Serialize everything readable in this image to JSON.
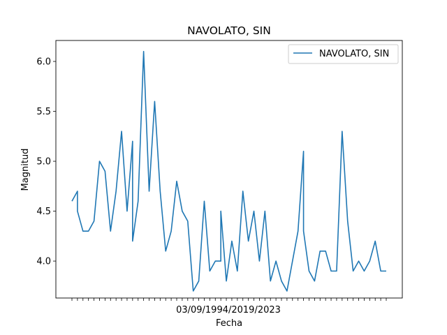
{
  "chart_data": {
    "type": "line",
    "title": "NAVOLATO, SIN",
    "xlabel": "Fecha",
    "ylabel": "Magnitud",
    "ylim": [
      3.63,
      6.21
    ],
    "yticks": [
      4.0,
      4.5,
      5.0,
      5.5,
      6.0
    ],
    "ytick_labels": [
      "4.0",
      "4.5",
      "5.0",
      "5.5",
      "6.0"
    ],
    "x_overlapping_tick_text": "03/09/1994/2019/2023",
    "legend": {
      "position": "top-right",
      "entries": [
        "NAVOLATO, SIN"
      ]
    },
    "grid": false,
    "series": [
      {
        "name": "NAVOLATO, SIN",
        "color": "#1f77b4",
        "x": [
          0,
          1,
          1,
          2,
          3,
          4,
          5,
          6,
          7,
          8,
          9,
          10,
          11,
          11,
          12,
          13,
          14,
          15,
          16,
          17,
          18,
          19,
          20,
          21,
          22,
          23,
          24,
          25,
          26,
          27,
          27,
          28,
          29,
          30,
          31,
          32,
          33,
          34,
          35,
          36,
          37,
          38,
          39,
          40,
          41,
          42,
          42,
          43,
          44,
          45,
          46,
          47,
          48,
          49,
          50,
          51,
          52,
          53,
          54,
          55,
          56,
          57
        ],
        "values": [
          4.6,
          4.7,
          4.5,
          4.3,
          4.3,
          4.4,
          5.0,
          4.9,
          4.3,
          4.7,
          5.3,
          4.5,
          5.2,
          4.2,
          4.6,
          6.1,
          4.7,
          5.6,
          4.7,
          4.1,
          4.3,
          4.8,
          4.5,
          4.4,
          3.7,
          3.8,
          4.6,
          3.9,
          4.0,
          4.0,
          4.5,
          3.8,
          4.2,
          3.9,
          4.7,
          4.2,
          4.5,
          4.0,
          4.5,
          3.8,
          4.0,
          3.8,
          3.7,
          4.0,
          4.3,
          5.1,
          4.3,
          3.9,
          3.8,
          4.1,
          4.1,
          3.9,
          3.9,
          5.3,
          4.4,
          3.9,
          4.0,
          3.9,
          4.0,
          4.2,
          3.9,
          3.9
        ]
      }
    ]
  }
}
